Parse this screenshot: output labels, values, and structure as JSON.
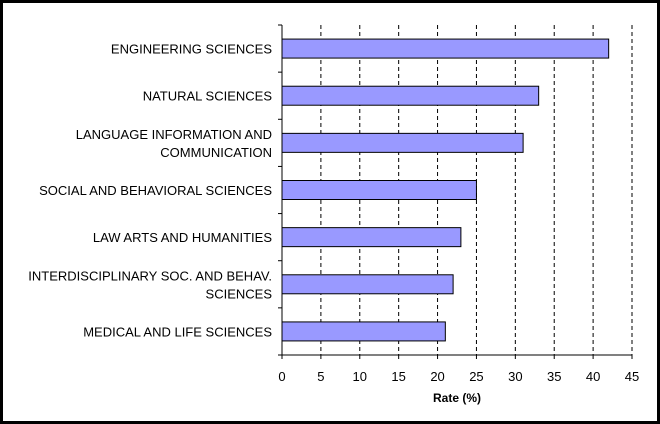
{
  "chart_data": {
    "type": "bar",
    "orientation": "horizontal",
    "categories": [
      "ENGINEERING SCIENCES",
      "NATURAL SCIENCES",
      "LANGUAGE INFORMATION AND COMMUNICATION",
      "SOCIAL AND BEHAVIORAL SCIENCES",
      "LAW ARTS AND HUMANITIES",
      "INTERDISCIPLINARY SOC. AND BEHAV. SCIENCES",
      "MEDICAL AND LIFE SCIENCES"
    ],
    "category_label_lines": [
      [
        "ENGINEERING SCIENCES"
      ],
      [
        "NATURAL SCIENCES"
      ],
      [
        "LANGUAGE INFORMATION AND",
        "COMMUNICATION"
      ],
      [
        "SOCIAL AND BEHAVIORAL SCIENCES"
      ],
      [
        "LAW ARTS AND HUMANITIES"
      ],
      [
        "INTERDISCIPLINARY SOC. AND BEHAV.",
        "SCIENCES"
      ],
      [
        "MEDICAL AND LIFE SCIENCES"
      ]
    ],
    "values": [
      42,
      33,
      31,
      25,
      23,
      22,
      21
    ],
    "xlabel": "Rate (%)",
    "ylabel": "",
    "title": "",
    "xlim": [
      0,
      45
    ],
    "xticks": [
      0,
      5,
      10,
      15,
      20,
      25,
      30,
      35,
      40,
      45
    ],
    "grid": "vertical dashed",
    "legend": "none",
    "colors": {
      "bar_fill": "#9999ff",
      "bar_stroke": "#000000",
      "grid": "#000000",
      "axis": "#000000",
      "frame": "#000000"
    }
  }
}
